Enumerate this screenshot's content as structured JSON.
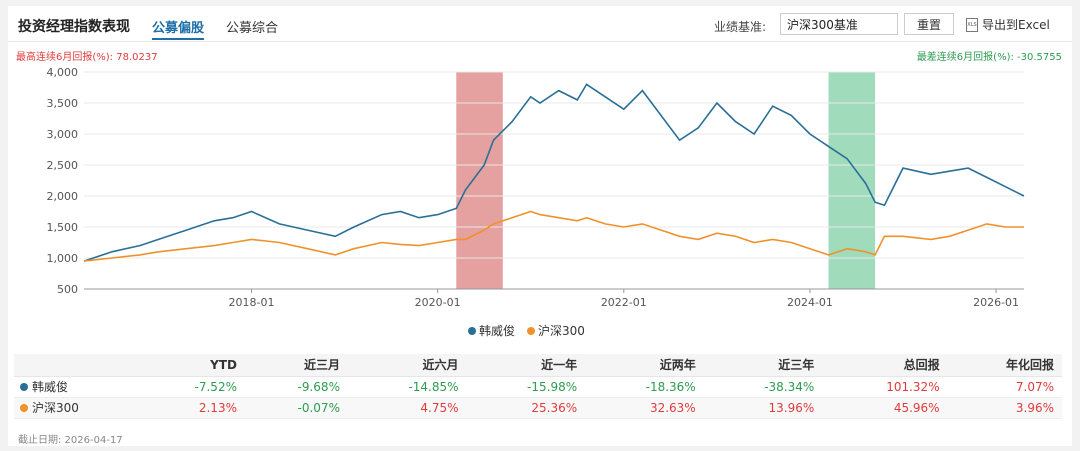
{
  "header": {
    "title": "投资经理指数表现",
    "tabs": [
      {
        "label": "公募偏股",
        "active": true
      },
      {
        "label": "公募综合",
        "active": false
      }
    ],
    "benchmark_label": "业绩基准:",
    "benchmark_value": "沪深300基准",
    "reset_label": "重置",
    "export_label": "导出到Excel"
  },
  "annotations": {
    "best": "最高连续6月回报(%): 78.0237",
    "worst": "最差连续6月回报(%): -30.5755"
  },
  "chart_data": {
    "type": "line",
    "xlim": [
      2016.2,
      2026.3
    ],
    "ylim": [
      500,
      4000
    ],
    "yticks": [
      "4,000",
      "3,500",
      "3,000",
      "2,500",
      "2,000",
      "1,500",
      "1,000",
      "500"
    ],
    "ytick_values": [
      4000,
      3500,
      3000,
      2500,
      2000,
      1500,
      1000,
      500
    ],
    "xticks": [
      "2018-01",
      "2020-01",
      "2022-01",
      "2024-01",
      "2026-01"
    ],
    "xtick_values": [
      2018.0,
      2020.0,
      2022.0,
      2024.0,
      2026.0
    ],
    "grid": true,
    "legend": "bottom-center",
    "highlight_best": [
      2020.2,
      2020.7
    ],
    "highlight_worst": [
      2024.2,
      2024.7
    ],
    "series": [
      {
        "name": "韩威俊",
        "color": "#2a6f97",
        "x": [
          2016.2,
          2016.5,
          2016.8,
          2017.0,
          2017.3,
          2017.6,
          2017.8,
          2018.0,
          2018.3,
          2018.6,
          2018.9,
          2019.1,
          2019.4,
          2019.6,
          2019.8,
          2020.0,
          2020.2,
          2020.3,
          2020.5,
          2020.6,
          2020.8,
          2021.0,
          2021.1,
          2021.3,
          2021.5,
          2021.6,
          2021.8,
          2022.0,
          2022.2,
          2022.4,
          2022.6,
          2022.8,
          2023.0,
          2023.2,
          2023.4,
          2023.6,
          2023.8,
          2024.0,
          2024.2,
          2024.4,
          2024.6,
          2024.7,
          2024.8,
          2025.0,
          2025.3,
          2025.5,
          2025.7,
          2025.9,
          2026.1,
          2026.3
        ],
        "values": [
          950,
          1100,
          1200,
          1300,
          1450,
          1600,
          1650,
          1750,
          1550,
          1450,
          1350,
          1500,
          1700,
          1750,
          1650,
          1700,
          1800,
          2100,
          2500,
          2900,
          3200,
          3600,
          3500,
          3700,
          3550,
          3800,
          3600,
          3400,
          3700,
          3300,
          2900,
          3100,
          3500,
          3200,
          3000,
          3450,
          3300,
          3000,
          2800,
          2600,
          2200,
          1900,
          1850,
          2450,
          2350,
          2400,
          2450,
          2300,
          2150,
          2000
        ]
      },
      {
        "name": "沪深300",
        "color": "#f0922b",
        "x": [
          2016.2,
          2016.5,
          2016.8,
          2017.0,
          2017.3,
          2017.6,
          2017.8,
          2018.0,
          2018.3,
          2018.6,
          2018.9,
          2019.1,
          2019.4,
          2019.6,
          2019.8,
          2020.0,
          2020.2,
          2020.3,
          2020.5,
          2020.6,
          2020.8,
          2021.0,
          2021.1,
          2021.3,
          2021.5,
          2021.6,
          2021.8,
          2022.0,
          2022.2,
          2022.4,
          2022.6,
          2022.8,
          2023.0,
          2023.2,
          2023.4,
          2023.6,
          2023.8,
          2024.0,
          2024.2,
          2024.4,
          2024.6,
          2024.7,
          2024.8,
          2025.0,
          2025.3,
          2025.5,
          2025.7,
          2025.9,
          2026.1,
          2026.3
        ],
        "values": [
          950,
          1000,
          1050,
          1100,
          1150,
          1200,
          1250,
          1300,
          1250,
          1150,
          1050,
          1150,
          1250,
          1220,
          1200,
          1250,
          1300,
          1300,
          1450,
          1550,
          1650,
          1750,
          1700,
          1650,
          1600,
          1650,
          1550,
          1500,
          1550,
          1450,
          1350,
          1300,
          1400,
          1350,
          1250,
          1300,
          1250,
          1150,
          1050,
          1150,
          1100,
          1050,
          1350,
          1350,
          1300,
          1350,
          1450,
          1550,
          1500,
          1500
        ]
      }
    ]
  },
  "table": {
    "headers": [
      "",
      "YTD",
      "近三月",
      "近六月",
      "近一年",
      "近两年",
      "近三年",
      "总回报",
      "年化回报"
    ],
    "rows": [
      {
        "name": "韩威俊",
        "color": "#2a6f97",
        "cells": [
          "-7.52%",
          "-9.68%",
          "-14.85%",
          "-15.98%",
          "-18.36%",
          "-38.34%",
          "101.32%",
          "7.07%"
        ]
      },
      {
        "name": "沪深300",
        "color": "#f0922b",
        "cells": [
          "2.13%",
          "-0.07%",
          "4.75%",
          "25.36%",
          "32.63%",
          "13.96%",
          "45.96%",
          "3.96%"
        ]
      }
    ]
  },
  "footer": {
    "date_label": "截止日期: 2026-04-17"
  }
}
